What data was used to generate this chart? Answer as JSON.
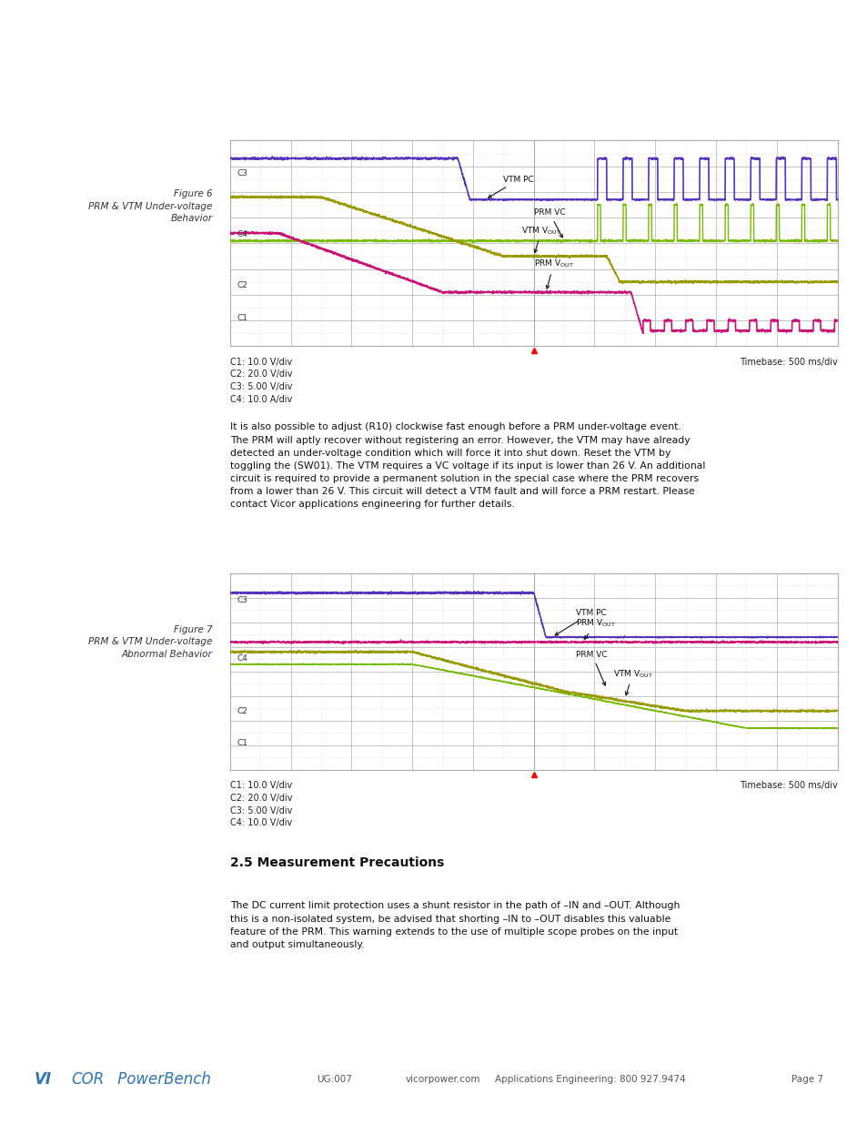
{
  "page_width": 9.54,
  "page_height": 12.35,
  "bg_color": "#ffffff",
  "top_line_color": "#2e75b6",
  "fig6_label": "Figure 6\nPRM & VTM Under-voltage\nBehavior",
  "fig7_label": "Figure 7\nPRM & VTM Under-voltage\nAbnormal Behavior",
  "osc_bg": "#ffffff",
  "osc_grid_color": "#cccccc",
  "osc_border_color": "#aaaaaa",
  "color_purple": "#5533bb",
  "color_green_bright": "#88cc00",
  "color_magenta": "#cc1177",
  "color_olive": "#999900",
  "caption1": "C1: 10.0 V/div\nC2: 20.0 V/div\nC3: 5.00 V/div\nC4: 10.0 A/div",
  "caption2": "C1: 10.0 V/div\nC2: 20.0 V/div\nC3: 5.00 V/div\nC4: 10.0 V/div",
  "timebase": "Timebase: 500 ms/div",
  "body_text1": "It is also possible to adjust (R10) clockwise fast enough before a PRM under-voltage event.\nThe PRM will aptly recover without registering an error. However, the VTM may have already\ndetected an under-voltage condition which will force it into shut down. Reset the VTM by\ntoggling the (SW01). The VTM requires a VC voltage if its input is lower than 26 V. An additional\ncircuit is required to provide a permanent solution in the special case where the PRM recovers\nfrom a lower than 26 V. This circuit will detect a VTM fault and will force a PRM restart. Please\ncontact Vicor applications engineering for further details.",
  "section_title": "2.5 Measurement Precautions",
  "body_text2": "The DC current limit protection uses a shunt resistor in the path of –IN and –OUT. Although\nthis is a non-isolated system, be advised that shorting –IN to –OUT disables this valuable\nfeature of the PRM. This warning extends to the use of multiple scope probes on the input\nand output simultaneously.",
  "footer_text_center1": "UG:007",
  "footer_text_center2": "vicorpower.com",
  "footer_text_center3": "Applications Engineering: 800 927.9474",
  "footer_text_right": "Page 7"
}
